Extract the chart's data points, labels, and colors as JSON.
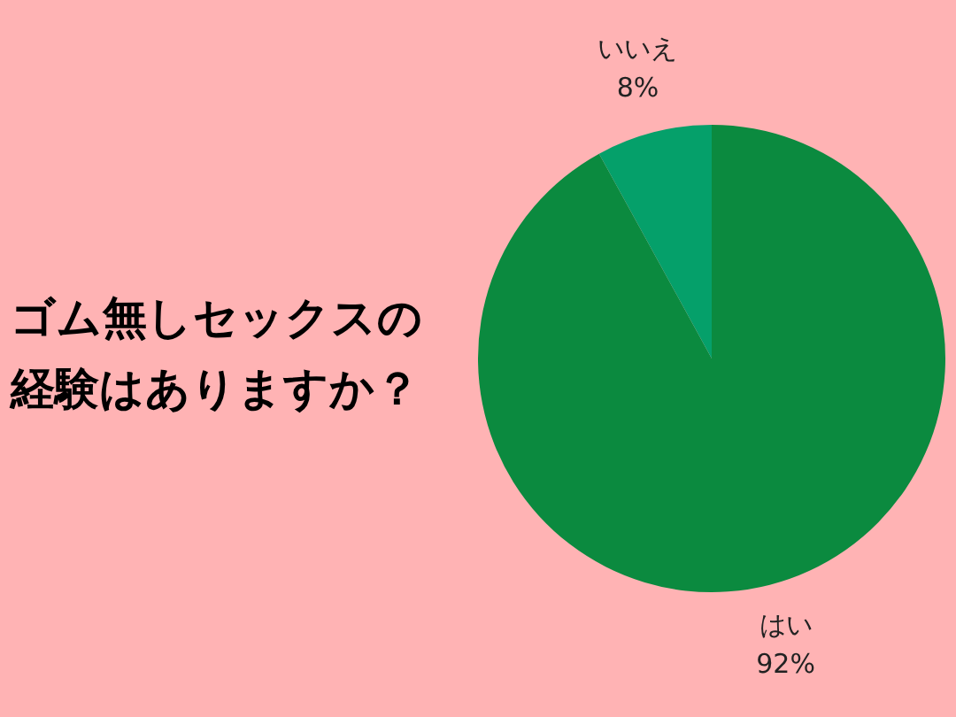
{
  "chart_data": {
    "type": "pie",
    "title": "ゴム無しセックスの経験はありますか？",
    "categories": [
      "はい",
      "いいえ"
    ],
    "values": [
      92,
      8
    ],
    "value_labels": [
      "92%",
      "8%"
    ],
    "colors": [
      "#0b8a3f",
      "#05a06a"
    ],
    "legend": false
  }
}
